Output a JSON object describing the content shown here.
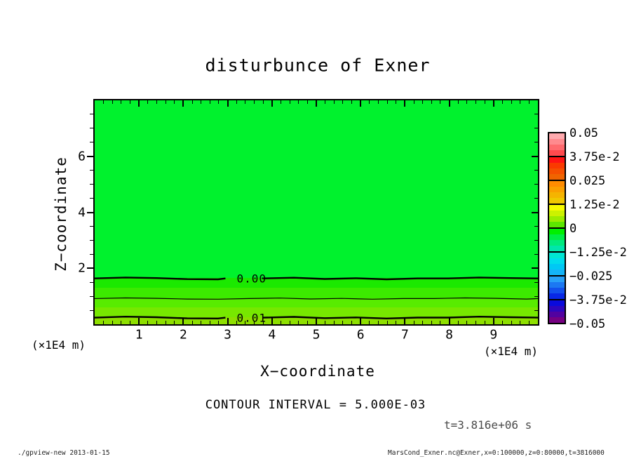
{
  "title": "disturbunce of Exner",
  "chart_data": {
    "type": "heatmap",
    "variant": "filled contour plot (gpview / DCL style)",
    "title": "disturbunce of Exner",
    "xlabel": "X−coordinate",
    "ylabel": "Z−coordinate",
    "x_unit_label": "(×1E4 m)",
    "y_unit_label": "(×1E4 m)",
    "xlim": [
      0,
      10
    ],
    "ylim": [
      0,
      8
    ],
    "axes": {
      "x_major_ticks": [
        1,
        2,
        3,
        4,
        5,
        6,
        7,
        8,
        9
      ],
      "x_minor_step": 0.2,
      "y_major_ticks": [
        2,
        4,
        6
      ],
      "y_minor_step": 0.5
    },
    "contour_interval_text": "CONTOUR INTERVAL = 5.000E-03",
    "time_label": "t=3.816e+06 s",
    "contours": [
      {
        "label": "0.00",
        "value": 0.0,
        "z": 1.65,
        "thick": true,
        "label_x": 3.54,
        "gap_x": [
          2.95,
          3.8
        ]
      },
      {
        "label": "",
        "value": 0.005,
        "z": 0.93,
        "thick": false,
        "label_x": null,
        "gap_x": null
      },
      {
        "label": "0.01",
        "value": 0.01,
        "z": 0.25,
        "thick": true,
        "label_x": 3.54,
        "gap_x": [
          2.95,
          3.8
        ]
      }
    ],
    "fill_bands": [
      {
        "z_top": 8.0,
        "z_bottom": 1.65,
        "value_range": "-0.0025 to 0.0000",
        "color": "#00F22D"
      },
      {
        "z_top": 1.65,
        "z_bottom": 1.3,
        "value_range": "0.0000 to 0.0025",
        "color": "#1BE900"
      },
      {
        "z_top": 1.3,
        "z_bottom": 0.93,
        "value_range": "0.0025 to 0.0050",
        "color": "#3CEA00"
      },
      {
        "z_top": 0.93,
        "z_bottom": 0.6,
        "value_range": "0.0050 to 0.0075",
        "color": "#58EC00"
      },
      {
        "z_top": 0.6,
        "z_bottom": 0.25,
        "value_range": "0.0075 to 0.0100",
        "color": "#77E800"
      },
      {
        "z_top": 0.25,
        "z_bottom": 0.0,
        "value_range": "over 0.0100",
        "color": "#8EDF00"
      }
    ],
    "colorbar": {
      "boundary_labels": [
        "0.05",
        "3.75e-2",
        "0.025",
        "1.25e-2",
        "0",
        "−1.25e-2",
        "−0.025",
        "−3.75e-2",
        "−0.05"
      ],
      "boundary_values": [
        0.05,
        0.0375,
        0.025,
        0.0125,
        0,
        -0.0125,
        -0.025,
        -0.0375,
        -0.05
      ],
      "segments": [
        [
          "#FFAAAE",
          "#FF8A8E",
          "#FF6A6E",
          "#FF4A4E"
        ],
        [
          "#FF1414",
          "#FA3A00",
          "#F55000",
          "#F06400"
        ],
        [
          "#FF8C00",
          "#FAA000",
          "#F5B400",
          "#F0C800"
        ],
        [
          "#F6FB00",
          "#CCF200",
          "#9CEC00",
          "#5CE600"
        ],
        [
          "#00F000",
          "#00EE46",
          "#00EA7E",
          "#00E6AC"
        ],
        [
          "#00E6D2",
          "#00DCEC",
          "#00C8F4",
          "#14B4F8"
        ],
        [
          "#28A0F8",
          "#1C78F2",
          "#1250EC",
          "#0828E6"
        ],
        [
          "#0A0ADC",
          "#2E06BE",
          "#5202A0",
          "#760082"
        ]
      ]
    },
    "footer_left": "./gpview-new  2013-01-15",
    "footer_right": "MarsCond_Exner.nc@Exner,x=0:100000,z=0:80000,t=3816000"
  }
}
